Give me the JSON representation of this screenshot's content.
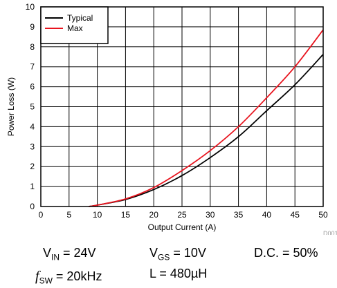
{
  "chart_data": {
    "type": "line",
    "xlabel": "Output Current (A)",
    "ylabel": "Power Loss (W)",
    "xlim": [
      0,
      50
    ],
    "ylim": [
      0,
      10
    ],
    "xticks": [
      0,
      5,
      10,
      15,
      20,
      25,
      30,
      35,
      40,
      45,
      50
    ],
    "yticks": [
      0,
      1,
      2,
      3,
      4,
      5,
      6,
      7,
      8,
      9,
      10
    ],
    "grid": true,
    "legend_position": "top-left",
    "figure_id": "D001",
    "series": [
      {
        "name": "Typical",
        "color": "#000000",
        "x": [
          8.5,
          10,
          15,
          20,
          25,
          30,
          35,
          40,
          45,
          50
        ],
        "y": [
          0.0,
          0.07,
          0.35,
          0.85,
          1.55,
          2.45,
          3.5,
          4.8,
          6.1,
          7.62
        ]
      },
      {
        "name": "Max",
        "color": "#e8141e",
        "x": [
          8.5,
          10,
          15,
          20,
          25,
          30,
          35,
          40,
          45,
          50
        ],
        "y": [
          0.0,
          0.07,
          0.38,
          0.95,
          1.8,
          2.8,
          4.0,
          5.45,
          7.0,
          8.85
        ]
      }
    ]
  },
  "conditions": {
    "vin_label": "V",
    "vin_sub": "IN",
    "vin_value": " = 24V",
    "vgs_label": "V",
    "vgs_sub": "GS",
    "vgs_value": " = 10V",
    "dc_text": "D.C. = 50%",
    "fsw_label": "f",
    "fsw_sub": "SW",
    "fsw_value": " = 20kHz",
    "l_text": "L = 480µH"
  }
}
